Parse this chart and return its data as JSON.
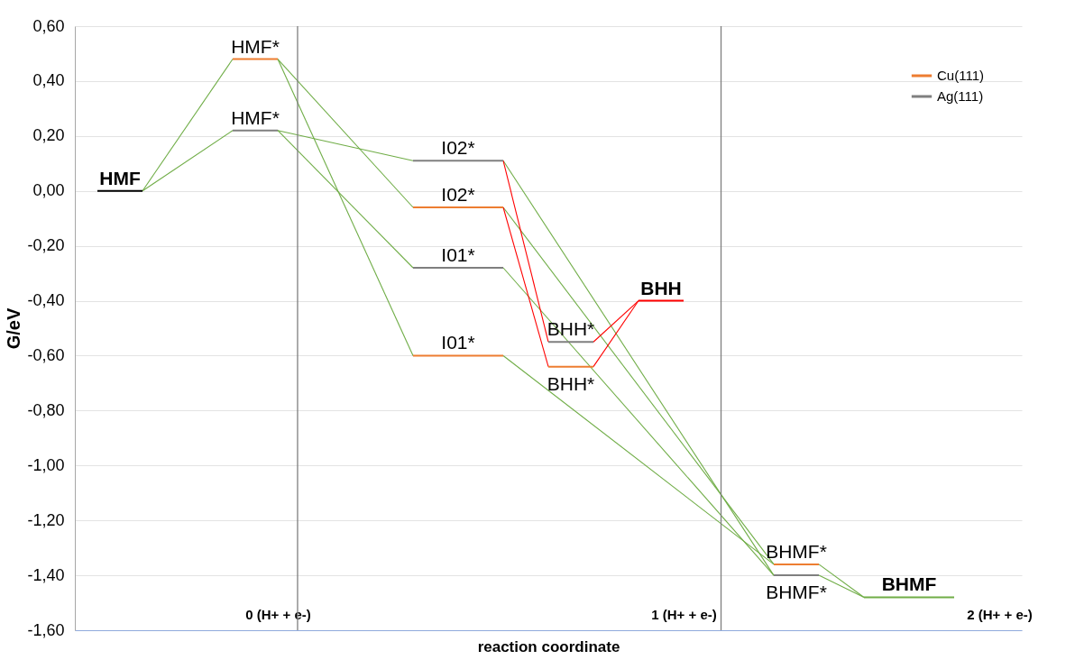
{
  "chart_data": {
    "type": "line",
    "xlabel": "reaction coordinate",
    "ylabel": "G/eV",
    "categories": [
      null,
      null,
      null,
      null,
      "0 (H+ + e-)",
      null,
      null,
      null,
      null,
      null,
      null,
      null,
      null,
      "1 (H+ + e-)",
      null,
      null,
      null,
      null,
      null,
      null,
      "2 (H+ + e-)"
    ],
    "ylim": [
      -1.6,
      0.6
    ],
    "yticks": [
      {
        "value": 0.6,
        "label": "0,60"
      },
      {
        "value": 0.4,
        "label": "0,40"
      },
      {
        "value": 0.2,
        "label": "0,20"
      },
      {
        "value": 0,
        "label": "0,00"
      },
      {
        "value": -0.2,
        "label": "-0,20"
      },
      {
        "value": -0.4,
        "label": "-0,40"
      },
      {
        "value": -0.6,
        "label": "-0,60"
      },
      {
        "value": -0.8,
        "label": "-0,80"
      },
      {
        "value": -1.0,
        "label": "-1,00"
      },
      {
        "value": -1.2,
        "label": "-1,20"
      },
      {
        "value": -1.4,
        "label": "-1,40"
      },
      {
        "value": -1.6,
        "label": "-1,60"
      }
    ],
    "grid": "y",
    "legend": "top right",
    "line_style": "solid",
    "marker": "none",
    "series": [
      {
        "name": "Cu(111)",
        "color": "#ed7d31",
        "values": [
          null,
          null,
          null,
          0.48,
          0.48,
          null,
          null,
          null,
          null,
          null,
          null,
          null,
          null,
          null,
          null,
          null,
          null,
          null,
          null,
          null,
          null
        ],
        "value_labels": [
          null,
          null,
          null,
          "HMF*",
          null,
          null,
          null,
          null,
          null,
          null,
          null,
          null,
          null,
          null,
          null,
          null,
          null,
          null,
          null,
          null,
          null
        ]
      },
      {
        "name": "Ag(111)",
        "color": "#7f7f7f",
        "values": [
          null,
          null,
          null,
          0.22,
          0.22,
          null,
          null,
          null,
          null,
          null,
          null,
          null,
          null,
          null,
          null,
          null,
          null,
          null,
          null,
          null,
          null
        ],
        "value_labels": [
          null,
          null,
          null,
          "HMF*",
          null,
          null,
          null,
          null,
          null,
          null,
          null,
          null,
          null,
          null,
          null,
          null,
          null,
          null,
          null,
          null,
          null
        ]
      },
      {
        "color": "#ed7d31",
        "values": [
          null,
          null,
          null,
          null,
          null,
          null,
          null,
          -0.06,
          -0.06,
          -0.06,
          null,
          null,
          null,
          null,
          null,
          null,
          null,
          null,
          null,
          null,
          null
        ],
        "value_labels": [
          null,
          null,
          null,
          null,
          null,
          null,
          null,
          null,
          "I02*",
          null,
          null,
          null,
          null,
          null,
          null,
          null,
          null,
          null,
          null,
          null,
          null
        ]
      },
      {
        "color": "#ed7d31",
        "values": [
          null,
          null,
          null,
          null,
          null,
          null,
          null,
          -0.6,
          -0.6,
          -0.6,
          null,
          null,
          null,
          null,
          null,
          null,
          null,
          null,
          null,
          null,
          null
        ],
        "value_labels": [
          null,
          null,
          null,
          null,
          null,
          null,
          null,
          null,
          "I01*",
          null,
          null,
          null,
          null,
          null,
          null,
          null,
          null,
          null,
          null,
          null,
          null
        ]
      },
      {
        "color": "#ed7d31",
        "values": [
          null,
          null,
          null,
          null,
          null,
          null,
          null,
          null,
          null,
          null,
          -0.64,
          -0.64,
          null,
          null,
          null,
          null,
          null,
          null,
          null,
          null,
          null
        ],
        "value_labels": [
          null,
          null,
          null,
          null,
          null,
          null,
          null,
          null,
          null,
          null,
          "BHH*",
          null,
          null,
          null,
          null,
          null,
          null,
          null,
          null,
          null,
          null
        ]
      },
      {
        "color": "#ed7d31",
        "values": [
          null,
          null,
          null,
          null,
          null,
          null,
          null,
          null,
          null,
          null,
          null,
          null,
          null,
          null,
          null,
          -1.36,
          -1.36,
          null,
          null,
          null,
          null
        ],
        "value_labels": [
          null,
          null,
          null,
          null,
          null,
          null,
          null,
          null,
          null,
          null,
          null,
          null,
          null,
          null,
          null,
          "BHMF*",
          null,
          null,
          null,
          null,
          null
        ]
      },
      {
        "color": "#7f7f7f",
        "values": [
          null,
          null,
          null,
          null,
          null,
          null,
          null,
          0.11,
          0.11,
          0.11,
          null,
          null,
          null,
          null,
          null,
          null,
          null,
          null,
          null,
          null,
          null
        ],
        "value_labels": [
          null,
          null,
          null,
          null,
          null,
          null,
          null,
          null,
          "I02*",
          null,
          null,
          null,
          null,
          null,
          null,
          null,
          null,
          null,
          null,
          null,
          null
        ]
      },
      {
        "color": "#7f7f7f",
        "values": [
          null,
          null,
          null,
          null,
          null,
          null,
          null,
          -0.28,
          -0.28,
          -0.28,
          null,
          null,
          null,
          null,
          null,
          null,
          null,
          null,
          null,
          null,
          null
        ],
        "value_labels": [
          null,
          null,
          null,
          null,
          null,
          null,
          null,
          null,
          "I01*",
          null,
          null,
          null,
          null,
          null,
          null,
          null,
          null,
          null,
          null,
          null,
          null
        ]
      },
      {
        "color": "#7f7f7f",
        "values": [
          null,
          null,
          null,
          null,
          null,
          null,
          null,
          null,
          null,
          null,
          -0.55,
          -0.55,
          null,
          null,
          null,
          null,
          null,
          null,
          null,
          null,
          null
        ],
        "value_labels": [
          null,
          null,
          null,
          null,
          null,
          null,
          null,
          null,
          null,
          null,
          "BHH*",
          null,
          null,
          null,
          null,
          null,
          null,
          null,
          null,
          null,
          null
        ]
      },
      {
        "color": "#7f7f7f",
        "values": [
          null,
          null,
          null,
          null,
          null,
          null,
          null,
          null,
          null,
          null,
          null,
          null,
          null,
          null,
          null,
          -1.4,
          -1.4,
          null,
          null,
          null,
          null
        ],
        "value_labels": [
          null,
          null,
          null,
          null,
          null,
          null,
          null,
          null,
          null,
          null,
          null,
          null,
          null,
          null,
          null,
          "BHMF*",
          null,
          null,
          null,
          null,
          null
        ]
      },
      {
        "name": "HMF",
        "color": "#000000",
        "values": [
          0,
          0,
          null,
          null,
          null,
          null,
          null,
          null,
          null,
          null,
          null,
          null,
          null,
          null,
          null,
          null,
          null,
          null,
          null,
          null,
          null
        ]
      },
      {
        "name": "BHH",
        "color": "#ff0000",
        "values": [
          null,
          null,
          null,
          null,
          null,
          null,
          null,
          null,
          null,
          null,
          null,
          null,
          -0.4,
          -0.4,
          null,
          null,
          null,
          null,
          null,
          null,
          null
        ]
      },
      {
        "name": "BHMF",
        "color": "#70ad47",
        "values": [
          null,
          null,
          null,
          null,
          null,
          null,
          null,
          null,
          null,
          null,
          null,
          null,
          null,
          null,
          null,
          null,
          null,
          -1.48,
          -1.48,
          -1.48,
          null
        ]
      },
      {
        "color": "#70ad47",
        "values": [
          null,
          0,
          null,
          0.48,
          null,
          null,
          null,
          null,
          null,
          null,
          null,
          null,
          null,
          null,
          null,
          null,
          null,
          null,
          null,
          null,
          null
        ]
      },
      {
        "color": "#70ad47",
        "values": [
          null,
          0,
          null,
          0.22,
          null,
          null,
          null,
          null,
          null,
          null,
          null,
          null,
          null,
          null,
          null,
          null,
          null,
          null,
          null,
          null,
          null
        ]
      },
      {
        "color": "#70ad47",
        "values": [
          null,
          null,
          null,
          null,
          0.48,
          null,
          null,
          -0.06,
          null,
          null,
          null,
          null,
          null,
          null,
          null,
          null,
          null,
          null,
          null,
          null,
          null
        ]
      },
      {
        "color": "#70ad47",
        "values": [
          null,
          null,
          null,
          null,
          0.48,
          null,
          null,
          -0.6,
          null,
          null,
          null,
          null,
          null,
          null,
          null,
          null,
          null,
          null,
          null,
          null,
          null
        ]
      },
      {
        "color": "#70ad47",
        "values": [
          null,
          null,
          null,
          null,
          0.22,
          null,
          null,
          0.11,
          null,
          null,
          null,
          null,
          null,
          null,
          null,
          null,
          null,
          null,
          null,
          null,
          null
        ]
      },
      {
        "color": "#70ad47",
        "values": [
          null,
          null,
          null,
          null,
          0.22,
          null,
          null,
          -0.28,
          null,
          null,
          null,
          null,
          null,
          null,
          null,
          null,
          null,
          null,
          null,
          null,
          null
        ]
      },
      {
        "color": "#70ad47",
        "values": [
          null,
          null,
          null,
          null,
          null,
          null,
          null,
          null,
          null,
          0.11,
          null,
          null,
          null,
          null,
          null,
          -1.4,
          null,
          null,
          null,
          null,
          null
        ]
      },
      {
        "color": "#70ad47",
        "values": [
          null,
          null,
          null,
          null,
          null,
          null,
          null,
          null,
          null,
          -0.06,
          null,
          null,
          null,
          null,
          null,
          -1.36,
          null,
          null,
          null,
          null,
          null
        ]
      },
      {
        "color": "#70ad47",
        "values": [
          null,
          null,
          null,
          null,
          null,
          null,
          null,
          null,
          null,
          -0.28,
          null,
          null,
          null,
          null,
          null,
          -1.4,
          null,
          null,
          null,
          null,
          null
        ]
      },
      {
        "color": "#70ad47",
        "values": [
          null,
          null,
          null,
          null,
          null,
          null,
          null,
          null,
          null,
          -0.6,
          null,
          null,
          null,
          null,
          null,
          -1.36,
          null,
          null,
          null,
          null,
          null
        ]
      },
      {
        "color": "#70ad47",
        "values": [
          null,
          null,
          null,
          null,
          null,
          null,
          null,
          null,
          null,
          null,
          null,
          null,
          null,
          null,
          null,
          null,
          -1.36,
          -1.48,
          null,
          null,
          null
        ]
      },
      {
        "color": "#70ad47",
        "values": [
          null,
          null,
          null,
          null,
          null,
          null,
          null,
          null,
          null,
          null,
          null,
          null,
          null,
          null,
          null,
          null,
          -1.4,
          -1.48,
          null,
          null,
          null
        ]
      },
      {
        "color": "#ff0000",
        "values": [
          null,
          null,
          null,
          null,
          null,
          null,
          null,
          null,
          null,
          0.11,
          -0.55,
          null,
          null,
          null,
          null,
          null,
          null,
          null,
          null,
          null,
          null
        ]
      },
      {
        "color": "#ff0000",
        "values": [
          null,
          null,
          null,
          null,
          null,
          null,
          null,
          null,
          null,
          -0.06,
          -0.64,
          null,
          null,
          null,
          null,
          null,
          null,
          null,
          null,
          null,
          null
        ]
      },
      {
        "color": "#ff0000",
        "values": [
          null,
          null,
          null,
          null,
          null,
          null,
          null,
          null,
          null,
          null,
          null,
          -0.55,
          -0.4,
          null,
          null,
          null,
          null,
          null,
          null,
          null,
          null
        ]
      },
      {
        "color": "#ff0000",
        "values": [
          null,
          null,
          null,
          null,
          null,
          null,
          null,
          null,
          null,
          null,
          null,
          -0.64,
          -0.4,
          null,
          null,
          null,
          null,
          null,
          null,
          null,
          null
        ]
      }
    ]
  }
}
